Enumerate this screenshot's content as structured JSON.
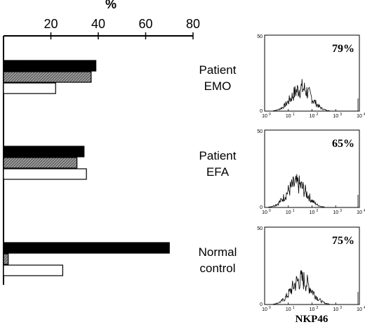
{
  "chart_data": [
    {
      "type": "bar",
      "orientation": "horizontal",
      "xlabel": "%",
      "xlim": [
        0,
        80
      ],
      "xticks": [
        20,
        40,
        60,
        80
      ],
      "axis_position": "top",
      "grid": false,
      "legend": "none",
      "groups": [
        {
          "label_line1": "Patient",
          "label_line2": "EMO",
          "values": [
            39,
            37,
            22
          ]
        },
        {
          "label_line1": "Patient",
          "label_line2": "EFA",
          "values": [
            34,
            31,
            35
          ]
        },
        {
          "label_line1": "Normal",
          "label_line2": "control",
          "values": [
            70,
            2,
            25
          ]
        }
      ],
      "bar_fills": [
        "black",
        "hatched-gray",
        "white"
      ]
    },
    {
      "type": "area",
      "kind": "histogram-panels",
      "xlabel": "NKP46",
      "x_scale": "log",
      "x_ticks": [
        "10",
        "10",
        "10",
        "10",
        "10"
      ],
      "x_tick_exponents": [
        "0",
        "1",
        "2",
        "3",
        "4"
      ],
      "y_ticks": [
        "0",
        "50"
      ],
      "ylim": [
        0,
        50
      ],
      "panels": [
        {
          "percent": "79%",
          "peak_decade": 1.55,
          "peak_counts": 15
        },
        {
          "percent": "65%",
          "peak_decade": 1.35,
          "peak_counts": 15
        },
        {
          "percent": "75%",
          "peak_decade": 1.55,
          "peak_counts": 16
        }
      ]
    }
  ]
}
